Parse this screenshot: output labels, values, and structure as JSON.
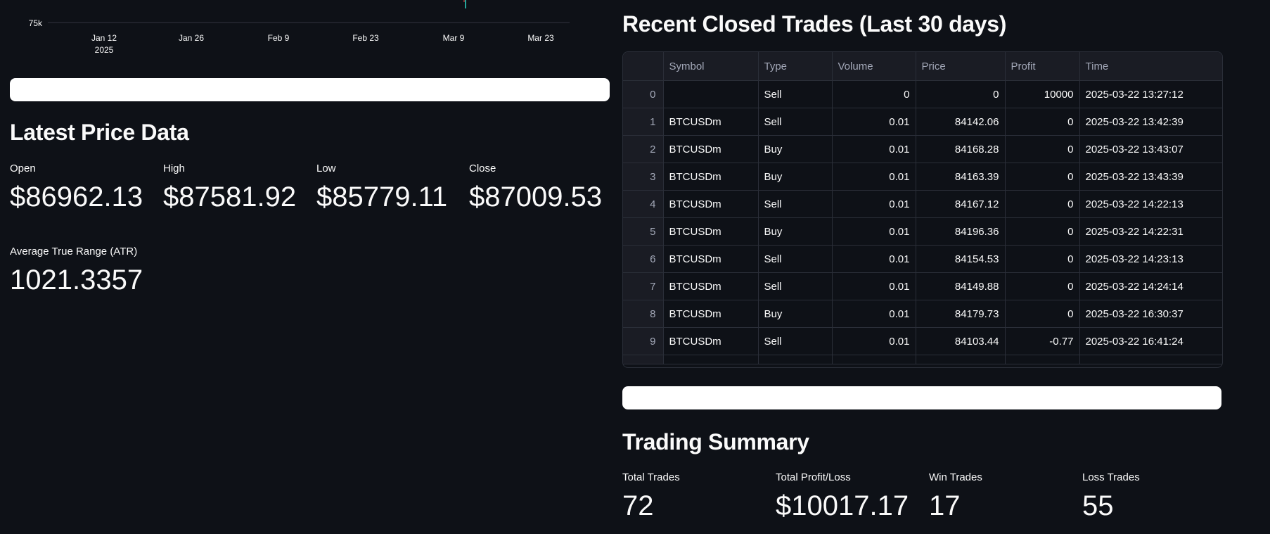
{
  "chart": {
    "y_tick": "75k",
    "x_ticks": [
      {
        "label": "Jan 12",
        "sub": "2025"
      },
      {
        "label": "Jan 26",
        "sub": ""
      },
      {
        "label": "Feb 9",
        "sub": ""
      },
      {
        "label": "Feb 23",
        "sub": ""
      },
      {
        "label": "Mar 9",
        "sub": ""
      },
      {
        "label": "Mar 23",
        "sub": ""
      }
    ],
    "colors": {
      "candle_up": "#26a69a",
      "candle_down": "#ef5350",
      "grid": "#31333f"
    }
  },
  "price": {
    "title": "Latest Price Data",
    "metrics": [
      {
        "label": "Open",
        "value": "$86962.13"
      },
      {
        "label": "High",
        "value": "$87581.92"
      },
      {
        "label": "Low",
        "value": "$85779.11"
      },
      {
        "label": "Close",
        "value": "$87009.53"
      }
    ],
    "atr": {
      "label": "Average True Range (ATR)",
      "value": "1021.3357"
    }
  },
  "trades": {
    "title": "Recent Closed Trades (Last 30 days)",
    "columns": [
      "",
      "Symbol",
      "Type",
      "Volume",
      "Price",
      "Profit",
      "Time"
    ],
    "rows": [
      [
        "0",
        "",
        "Sell",
        "0",
        "0",
        "10000",
        "2025-03-22 13:27:12"
      ],
      [
        "1",
        "BTCUSDm",
        "Sell",
        "0.01",
        "84142.06",
        "0",
        "2025-03-22 13:42:39"
      ],
      [
        "2",
        "BTCUSDm",
        "Buy",
        "0.01",
        "84168.28",
        "0",
        "2025-03-22 13:43:07"
      ],
      [
        "3",
        "BTCUSDm",
        "Buy",
        "0.01",
        "84163.39",
        "0",
        "2025-03-22 13:43:39"
      ],
      [
        "4",
        "BTCUSDm",
        "Sell",
        "0.01",
        "84167.12",
        "0",
        "2025-03-22 14:22:13"
      ],
      [
        "5",
        "BTCUSDm",
        "Buy",
        "0.01",
        "84196.36",
        "0",
        "2025-03-22 14:22:31"
      ],
      [
        "6",
        "BTCUSDm",
        "Sell",
        "0.01",
        "84154.53",
        "0",
        "2025-03-22 14:23:13"
      ],
      [
        "7",
        "BTCUSDm",
        "Sell",
        "0.01",
        "84149.88",
        "0",
        "2025-03-22 14:24:14"
      ],
      [
        "8",
        "BTCUSDm",
        "Buy",
        "0.01",
        "84179.73",
        "0",
        "2025-03-22 16:30:37"
      ],
      [
        "9",
        "BTCUSDm",
        "Sell",
        "0.01",
        "84103.44",
        "-0.77",
        "2025-03-22 16:41:24"
      ]
    ]
  },
  "summary": {
    "title": "Trading Summary",
    "metrics": [
      {
        "label": "Total Trades",
        "value": "72"
      },
      {
        "label": "Total Profit/Loss",
        "value": "$10017.17"
      },
      {
        "label": "Win Trades",
        "value": "17"
      },
      {
        "label": "Loss Trades",
        "value": "55"
      }
    ]
  }
}
